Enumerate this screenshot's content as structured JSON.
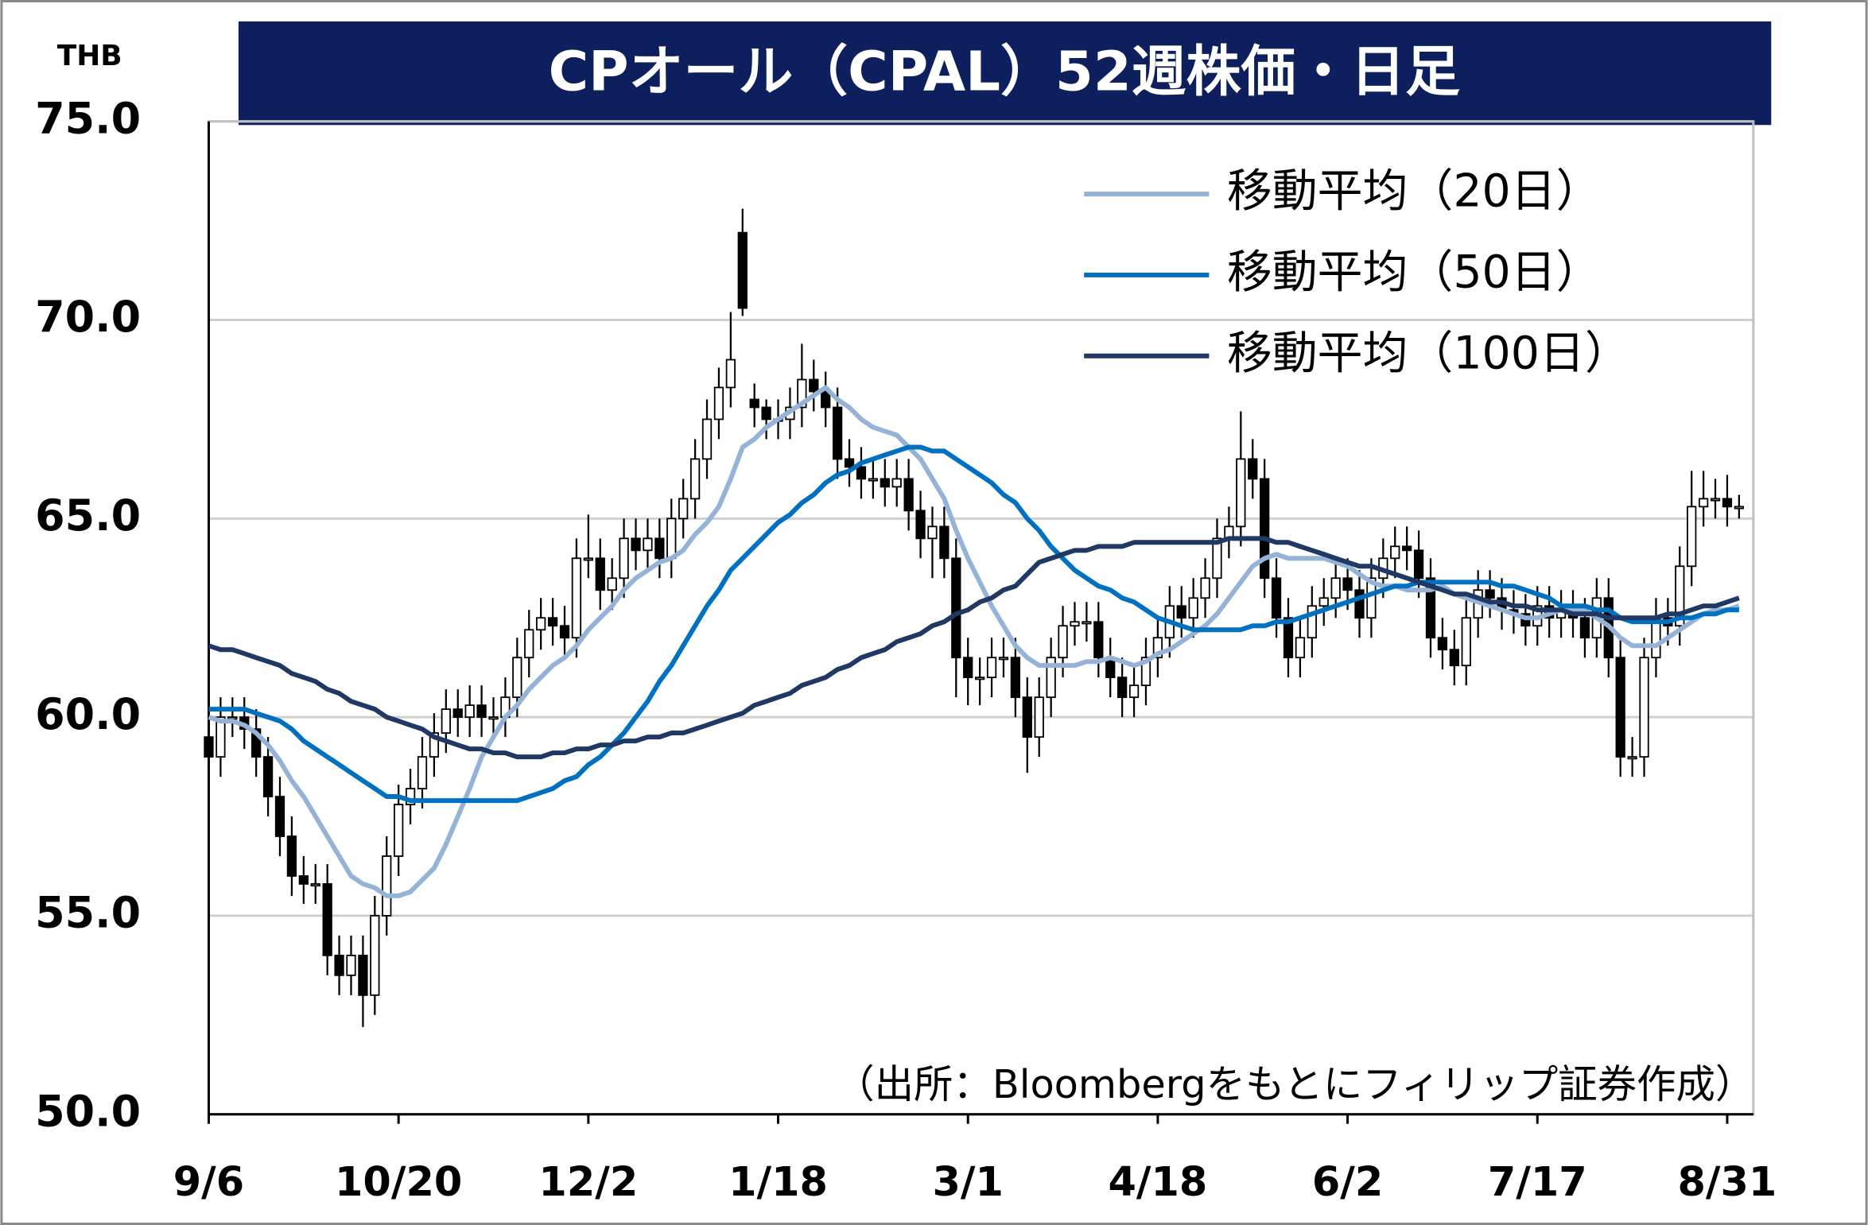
{
  "chart_data": {
    "type": "candlestick",
    "title": "CPオール（CPAL）52週株価・日足",
    "unit_label": "THB",
    "source": "（出所：Bloombergをもとにフィリップ証券作成）",
    "ylim": [
      50,
      75
    ],
    "yticks": [
      {
        "value": 50,
        "label": "50.0"
      },
      {
        "value": 55,
        "label": "55.0"
      },
      {
        "value": 60,
        "label": "60.0"
      },
      {
        "value": 65,
        "label": "65.0"
      },
      {
        "value": 70,
        "label": "70.0"
      },
      {
        "value": 75,
        "label": "75.0"
      }
    ],
    "grid": true,
    "legend": "upper right",
    "up_color": "#ffffff",
    "down_color": "#000000",
    "categories": [
      "9/6",
      null,
      null,
      null,
      null,
      null,
      null,
      null,
      null,
      null,
      null,
      null,
      null,
      null,
      null,
      null,
      "10/20",
      null,
      null,
      null,
      null,
      null,
      null,
      null,
      null,
      null,
      null,
      null,
      null,
      null,
      null,
      null,
      "12/2",
      null,
      null,
      null,
      null,
      null,
      null,
      null,
      null,
      null,
      null,
      null,
      null,
      null,
      null,
      null,
      "1/18",
      null,
      null,
      null,
      null,
      null,
      null,
      null,
      null,
      null,
      null,
      null,
      null,
      null,
      null,
      null,
      "3/1",
      null,
      null,
      null,
      null,
      null,
      null,
      null,
      null,
      null,
      null,
      null,
      null,
      null,
      null,
      null,
      "4/18",
      null,
      null,
      null,
      null,
      null,
      null,
      null,
      null,
      null,
      null,
      null,
      null,
      null,
      null,
      null,
      "6/2",
      null,
      null,
      null,
      null,
      null,
      null,
      null,
      null,
      null,
      null,
      null,
      null,
      null,
      null,
      null,
      "7/17",
      null,
      null,
      null,
      null,
      null,
      null,
      null,
      null,
      null,
      null,
      null,
      null,
      null,
      null,
      null,
      "8/31",
      null
    ],
    "ohlc": {
      "open": [
        59.5,
        59,
        60,
        60,
        59.7,
        59,
        58,
        57,
        56,
        55.8,
        55.8,
        54,
        53.5,
        54,
        53,
        55,
        56.5,
        57.8,
        58.2,
        59,
        59.6,
        60.2,
        60,
        60.3,
        60,
        60,
        60.5,
        61.5,
        62.2,
        62.5,
        62.3,
        62,
        64,
        64,
        63.2,
        63.5,
        64.5,
        64.2,
        64.5,
        64,
        65,
        65.5,
        66.5,
        67.5,
        68.3,
        72.2,
        68,
        67.8,
        67.5,
        67.5,
        67.8,
        68.5,
        68.2,
        67.8,
        66.5,
        66.3,
        66,
        66,
        65.8,
        66,
        65.2,
        64.5,
        64.8,
        64,
        61.5,
        61,
        61,
        61.5,
        61.5,
        60.5,
        59.5,
        60.5,
        61.5,
        62.3,
        62.4,
        62.4,
        61.5,
        61,
        60.5,
        60.8,
        61.5,
        62,
        62.8,
        62.5,
        63,
        63.5,
        64.5,
        64.8,
        66.5,
        66,
        63.5,
        62.5,
        61.5,
        62,
        62.8,
        63,
        63.5,
        63.2,
        62.5,
        63.5,
        64,
        64.3,
        64.2,
        63.5,
        62,
        61.7,
        61.3,
        62.5,
        63.2,
        63,
        62.7,
        62.6,
        62.3,
        62.8,
        62.5,
        62.7,
        62.5,
        62,
        63,
        61.5,
        59,
        59,
        61.5,
        62.5,
        62.3,
        63.8,
        65.3,
        65.5,
        65.5,
        65.3
      ],
      "high": [
        60,
        60.5,
        60.5,
        60.5,
        60.2,
        59.5,
        58.5,
        57.5,
        56.5,
        56.3,
        56.3,
        54.5,
        54.5,
        54.5,
        55.5,
        57,
        58.3,
        58.7,
        59.5,
        60.1,
        60.7,
        60.7,
        60.8,
        60.8,
        60.5,
        61,
        62,
        62.7,
        63,
        63,
        62.8,
        64.5,
        65.1,
        64.5,
        64,
        65,
        65,
        65,
        65,
        65.5,
        66,
        67,
        68,
        68.8,
        70.2,
        72.8,
        68.4,
        68,
        68,
        68.3,
        69.4,
        69,
        68.7,
        68.3,
        67,
        66.8,
        66.5,
        66.5,
        66.5,
        66.5,
        65.7,
        65.3,
        65.3,
        64.5,
        62,
        61.5,
        62,
        62,
        62,
        61,
        61,
        62,
        62.8,
        62.9,
        62.9,
        62.9,
        62,
        61.5,
        61.3,
        62,
        62.5,
        63.3,
        63.3,
        63.5,
        64,
        65,
        65.3,
        67.7,
        67,
        66.5,
        64,
        63,
        62.5,
        63.3,
        63.5,
        64,
        64,
        63.7,
        64,
        64.5,
        64.8,
        64.8,
        64.7,
        64,
        62.5,
        62.2,
        63,
        63.7,
        63.7,
        63.5,
        63.2,
        63.1,
        63.3,
        63.3,
        63.2,
        63.2,
        63,
        63.5,
        63.5,
        62,
        59.5,
        62,
        63,
        63,
        64.3,
        66.2,
        66.2,
        66,
        66.1,
        65.6
      ],
      "low": [
        58.5,
        58.5,
        59.5,
        59.2,
        58.5,
        57.5,
        56.5,
        55.5,
        55.3,
        55.3,
        53.5,
        53,
        53,
        52.2,
        52.5,
        54.5,
        56,
        57.3,
        57.7,
        58.5,
        59.1,
        59.5,
        59.5,
        59.5,
        59.5,
        59.5,
        60,
        61,
        61.7,
        61.8,
        61.5,
        61.5,
        63.5,
        62.7,
        62.7,
        63,
        63.7,
        63.7,
        63.5,
        63.5,
        64.5,
        65,
        66,
        67,
        67.8,
        70.1,
        67.3,
        67,
        67,
        67,
        67.3,
        67.7,
        67.3,
        66,
        65.8,
        65.5,
        65.5,
        65.3,
        65.3,
        64.7,
        64,
        63.5,
        63.5,
        60.5,
        60.3,
        60.3,
        60.5,
        61,
        60,
        58.6,
        59,
        60,
        61,
        61.8,
        61.9,
        61,
        60.5,
        60,
        60,
        60.3,
        61,
        61.5,
        62,
        62,
        62.5,
        63,
        64,
        64.3,
        65.5,
        63,
        62,
        61,
        61,
        61.5,
        62.3,
        62.5,
        62.7,
        62,
        62,
        63,
        63.5,
        63.7,
        63,
        61.5,
        61.2,
        60.8,
        60.8,
        62,
        62.5,
        62.2,
        62.1,
        61.8,
        61.8,
        62,
        62,
        62,
        61.5,
        61.5,
        61,
        58.5,
        58.5,
        58.5,
        61,
        61.8,
        61.8,
        63.3,
        64.8,
        65,
        64.8,
        65
      ],
      "close": [
        59,
        60,
        60,
        59.7,
        59,
        58,
        57,
        56,
        55.8,
        55.8,
        54,
        53.5,
        54,
        53,
        55,
        56.5,
        57.8,
        58.2,
        59,
        59.6,
        60.2,
        60,
        60.3,
        60,
        60,
        60.5,
        61.5,
        62.2,
        62.5,
        62.3,
        62,
        64,
        64,
        63.2,
        63.5,
        64.5,
        64.2,
        64.5,
        64,
        65,
        65.5,
        66.5,
        67.5,
        68.3,
        69,
        70.3,
        67.8,
        67.5,
        67.5,
        67.8,
        68.5,
        68.2,
        67.8,
        66.5,
        66.3,
        66,
        66,
        65.8,
        66,
        65.2,
        64.5,
        64.8,
        64,
        61.5,
        61,
        61,
        61.5,
        61.5,
        60.5,
        59.5,
        60.5,
        61.5,
        62.3,
        62.4,
        62.4,
        61.5,
        61,
        60.5,
        60.8,
        61.5,
        62,
        62.8,
        62.5,
        63,
        63.5,
        64.5,
        64.8,
        66.5,
        66,
        63.5,
        62.5,
        61.5,
        62,
        62.8,
        63,
        63.5,
        63.2,
        62.5,
        63.5,
        64,
        64.3,
        64.2,
        63.5,
        62,
        61.7,
        61.3,
        62.5,
        63.2,
        63,
        62.7,
        62.6,
        62.3,
        62.8,
        62.5,
        62.7,
        62.5,
        62,
        63,
        61.5,
        59,
        59,
        61.5,
        62.5,
        62.3,
        63.8,
        65.3,
        65.5,
        65.5,
        65.3,
        65.3
      ]
    },
    "series": [
      {
        "name": "移動平均（20日）",
        "color": "#95b3d7",
        "values": [
          60.0,
          59.9,
          59.9,
          59.8,
          59.6,
          59.3,
          58.9,
          58.4,
          58.0,
          57.5,
          57.0,
          56.5,
          56.0,
          55.8,
          55.7,
          55.5,
          55.5,
          55.6,
          55.9,
          56.2,
          56.8,
          57.5,
          58.2,
          59.0,
          59.5,
          60.0,
          60.3,
          60.7,
          61.0,
          61.3,
          61.5,
          61.8,
          62.2,
          62.5,
          62.8,
          63.2,
          63.5,
          63.7,
          63.9,
          64.0,
          64.2,
          64.6,
          64.9,
          65.3,
          66.0,
          66.8,
          67.0,
          67.3,
          67.5,
          67.7,
          67.9,
          68.1,
          68.3,
          68.0,
          67.8,
          67.5,
          67.3,
          67.2,
          67.1,
          66.8,
          66.5,
          66.0,
          65.5,
          64.7,
          64.0,
          63.4,
          62.8,
          62.3,
          61.8,
          61.5,
          61.3,
          61.3,
          61.3,
          61.3,
          61.4,
          61.4,
          61.5,
          61.4,
          61.3,
          61.4,
          61.6,
          61.7,
          61.9,
          62.1,
          62.3,
          62.6,
          63.0,
          63.4,
          63.8,
          64.0,
          64.1,
          64.0,
          64.0,
          64.0,
          64.0,
          63.9,
          63.8,
          63.6,
          63.4,
          63.3,
          63.3,
          63.2,
          63.2,
          63.2,
          63.3,
          63.1,
          63.0,
          62.9,
          62.8,
          62.7,
          62.6,
          62.5,
          62.5,
          62.6,
          62.7,
          62.7,
          62.7,
          62.5,
          62.3,
          62.0,
          61.8,
          61.8,
          61.8,
          62.0,
          62.2,
          62.4,
          62.6,
          62.7,
          62.7,
          62.8
        ]
      },
      {
        "name": "移動平均（50日）",
        "color": "#0070c0",
        "values": [
          60.2,
          60.2,
          60.2,
          60.2,
          60.1,
          60.0,
          59.9,
          59.7,
          59.4,
          59.2,
          59.0,
          58.8,
          58.6,
          58.4,
          58.2,
          58.0,
          58.0,
          57.9,
          57.9,
          57.9,
          57.9,
          57.9,
          57.9,
          57.9,
          57.9,
          57.9,
          57.9,
          58.0,
          58.1,
          58.2,
          58.4,
          58.5,
          58.8,
          59.0,
          59.3,
          59.6,
          60.0,
          60.4,
          60.9,
          61.3,
          61.8,
          62.3,
          62.8,
          63.2,
          63.7,
          64.0,
          64.3,
          64.6,
          64.9,
          65.1,
          65.4,
          65.6,
          65.9,
          66.1,
          66.2,
          66.4,
          66.5,
          66.6,
          66.7,
          66.8,
          66.8,
          66.7,
          66.7,
          66.5,
          66.3,
          66.1,
          65.9,
          65.6,
          65.4,
          65.0,
          64.7,
          64.3,
          64.0,
          63.7,
          63.5,
          63.3,
          63.2,
          63.0,
          62.9,
          62.7,
          62.5,
          62.4,
          62.3,
          62.2,
          62.2,
          62.2,
          62.2,
          62.2,
          62.3,
          62.3,
          62.4,
          62.4,
          62.5,
          62.6,
          62.7,
          62.8,
          62.9,
          63.0,
          63.1,
          63.2,
          63.3,
          63.3,
          63.4,
          63.4,
          63.4,
          63.4,
          63.4,
          63.4,
          63.4,
          63.3,
          63.3,
          63.2,
          63.1,
          63.0,
          62.8,
          62.8,
          62.8,
          62.7,
          62.7,
          62.5,
          62.4,
          62.4,
          62.4,
          62.4,
          62.5,
          62.5,
          62.6,
          62.6,
          62.7,
          62.7
        ]
      },
      {
        "name": "移動平均（100日）",
        "color": "#1f3864",
        "values": [
          61.8,
          61.7,
          61.7,
          61.6,
          61.5,
          61.4,
          61.3,
          61.1,
          61.0,
          60.9,
          60.7,
          60.6,
          60.4,
          60.3,
          60.2,
          60.0,
          59.9,
          59.8,
          59.7,
          59.5,
          59.4,
          59.3,
          59.2,
          59.2,
          59.1,
          59.1,
          59.0,
          59.0,
          59.0,
          59.1,
          59.1,
          59.2,
          59.2,
          59.3,
          59.3,
          59.4,
          59.4,
          59.5,
          59.5,
          59.6,
          59.6,
          59.7,
          59.8,
          59.9,
          60.0,
          60.1,
          60.3,
          60.4,
          60.5,
          60.6,
          60.8,
          60.9,
          61.0,
          61.2,
          61.3,
          61.5,
          61.6,
          61.7,
          61.9,
          62.0,
          62.1,
          62.3,
          62.4,
          62.6,
          62.7,
          62.9,
          63.0,
          63.2,
          63.3,
          63.6,
          63.9,
          64.0,
          64.1,
          64.2,
          64.2,
          64.3,
          64.3,
          64.3,
          64.4,
          64.4,
          64.4,
          64.4,
          64.4,
          64.4,
          64.4,
          64.4,
          64.5,
          64.5,
          64.5,
          64.5,
          64.4,
          64.4,
          64.3,
          64.2,
          64.1,
          64.0,
          63.9,
          63.8,
          63.8,
          63.7,
          63.6,
          63.5,
          63.4,
          63.3,
          63.2,
          63.1,
          63.1,
          63.0,
          62.9,
          62.9,
          62.8,
          62.8,
          62.7,
          62.7,
          62.7,
          62.6,
          62.6,
          62.6,
          62.5,
          62.5,
          62.5,
          62.5,
          62.5,
          62.6,
          62.6,
          62.7,
          62.8,
          62.8,
          62.9,
          63.0
        ]
      }
    ]
  }
}
